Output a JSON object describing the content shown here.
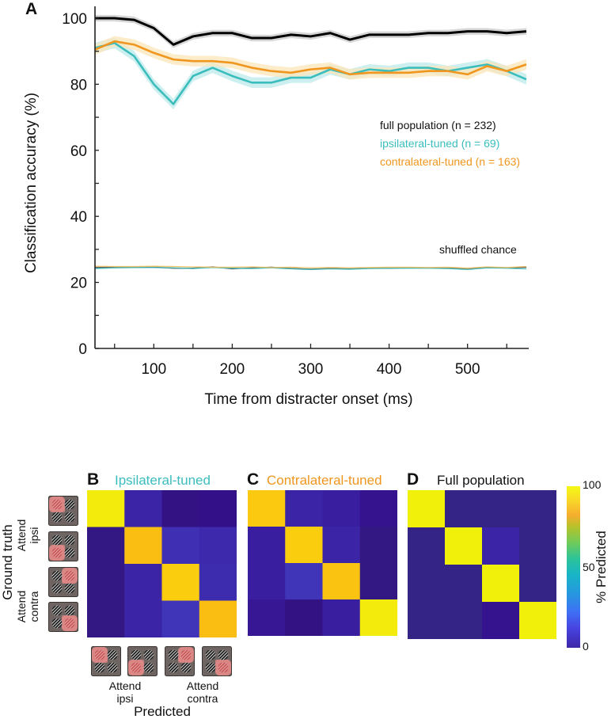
{
  "chart_data": [
    {
      "panel": "A",
      "type": "line",
      "xlabel": "Time from distracter onset (ms)",
      "ylabel": "Classification accuracy (%)",
      "xlim": [
        25,
        575
      ],
      "ylim": [
        0,
        105
      ],
      "xticks": [
        100,
        200,
        300,
        400,
        500
      ],
      "xminor_ticks": [
        50,
        150,
        250,
        350,
        450,
        550
      ],
      "yticks": [
        0,
        20,
        40,
        60,
        80,
        100
      ],
      "yminor_ticks": [
        10,
        30,
        50,
        70,
        90
      ],
      "grid": false,
      "legend_position": "center-right",
      "x": [
        25,
        50,
        75,
        100,
        125,
        150,
        175,
        200,
        225,
        250,
        275,
        300,
        325,
        350,
        375,
        400,
        425,
        450,
        475,
        500,
        525,
        550,
        575
      ],
      "series": [
        {
          "name": "full population (n = 232)",
          "color": "#000000",
          "band_color": "#c8c8c8",
          "values": [
            100,
            100,
            99.5,
            97,
            92,
            94.5,
            95.5,
            95.5,
            94,
            94,
            95,
            94.5,
            95.5,
            93.5,
            95,
            95,
            95,
            95.5,
            95.5,
            96,
            96,
            95.5,
            96
          ]
        },
        {
          "name": "ipsilateral-tuned (n = 69)",
          "color": "#3cbdbd",
          "band_color": "#bdeaea",
          "values": [
            91,
            92.5,
            88.5,
            80,
            74,
            82.5,
            85,
            82.5,
            80.5,
            80.5,
            82,
            82,
            84.5,
            83,
            84.5,
            84,
            85,
            85,
            84,
            85,
            86,
            84,
            81.5
          ]
        },
        {
          "name": "contralateral-tuned (n = 163)",
          "color": "#f0961e",
          "band_color": "#fbe5b8",
          "values": [
            90.5,
            93,
            92,
            89.5,
            87.5,
            87,
            87,
            86.5,
            85,
            84,
            83.5,
            84.5,
            85,
            83,
            83.5,
            83.5,
            83.5,
            84,
            84,
            83,
            85.5,
            84,
            86
          ]
        }
      ],
      "chance_series": [
        {
          "name": "full population shuffled",
          "color": "#333333",
          "values": [
            24.5,
            24.5,
            24.5,
            24.6,
            24.3,
            24.3,
            24.7,
            24.1,
            24.4,
            24.6,
            24.2,
            24.0,
            24.2,
            24.1,
            24.3,
            24.3,
            24.4,
            24.4,
            24.3,
            24.2,
            24.5,
            24.4,
            24.6
          ]
        },
        {
          "name": "ipsilateral shuffled",
          "color": "#3cbdbd",
          "values": [
            24.2,
            24.4,
            24.5,
            24.5,
            24.4,
            24.2,
            24.5,
            24.3,
            24.2,
            24.4,
            24.1,
            23.9,
            24.1,
            24.0,
            24.2,
            24.3,
            24.3,
            24.3,
            24.2,
            23.9,
            24.4,
            24.3,
            24.1
          ]
        },
        {
          "name": "contralateral shuffled",
          "color": "#f0c060",
          "values": [
            24.9,
            24.8,
            24.8,
            24.9,
            24.8,
            24.7,
            24.6,
            24.6,
            24.7,
            24.5,
            24.6,
            24.4,
            24.5,
            24.4,
            24.5,
            24.6,
            24.6,
            24.5,
            24.6,
            24.3,
            24.7,
            24.5,
            24.8
          ]
        }
      ],
      "annotations": [
        "shuffled chance"
      ]
    },
    {
      "panel": "B",
      "type": "heatmap",
      "title": "Ipsilateral-tuned",
      "title_color": "#3cbdbd",
      "xlabel": "Predicted",
      "ylabel": "Ground truth",
      "row_groups": [
        "Attend ipsi",
        "Attend contra"
      ],
      "col_groups": [
        "Attend ipsi",
        "Attend contra"
      ],
      "values": [
        [
          98,
          12,
          4,
          6
        ],
        [
          3,
          88,
          16,
          14
        ],
        [
          3,
          12,
          92,
          15
        ],
        [
          3,
          12,
          18,
          88
        ]
      ],
      "zlim": [
        0,
        100
      ]
    },
    {
      "panel": "C",
      "type": "heatmap",
      "title": "Contralateral-tuned",
      "title_color": "#f0961e",
      "values": [
        [
          91,
          12,
          10,
          7
        ],
        [
          10,
          92,
          12,
          3
        ],
        [
          10,
          18,
          89,
          3
        ],
        [
          8,
          4,
          10,
          98
        ]
      ],
      "zlim": [
        0,
        100
      ]
    },
    {
      "panel": "D",
      "type": "heatmap",
      "title": "Full population",
      "title_color": "#111111",
      "values": [
        [
          99,
          1,
          1,
          1
        ],
        [
          1,
          99,
          12,
          1
        ],
        [
          1,
          1,
          99,
          1
        ],
        [
          1,
          1,
          7,
          99
        ]
      ],
      "zlim": [
        0,
        100
      ]
    }
  ],
  "panel_labels": {
    "a": "A",
    "b": "B",
    "c": "C",
    "d": "D"
  },
  "legend": {
    "full": "full population (n = 232)",
    "ipsi": "ipsilateral-tuned (n = 69)",
    "contra": "contralateral-tuned (n = 163)",
    "chance": "shuffled chance",
    "colors": {
      "full": "#111111",
      "ipsi": "#3cbdbd",
      "contra": "#f0961e"
    }
  },
  "colorbar": {
    "label": "% Predicted",
    "ticks": [
      "100",
      "50",
      "0"
    ]
  },
  "heatmap_labels": {
    "ground_truth": "Ground truth",
    "predicted": "Predicted",
    "attend_ipsi_1": "Attend",
    "attend_ipsi_2": "ipsi",
    "attend_contra_1": "Attend",
    "attend_contra_2": "contra"
  },
  "stimulus_icons": {
    "attended_quadrants": [
      "top-left",
      "bottom-left",
      "top-right",
      "bottom-right"
    ]
  }
}
